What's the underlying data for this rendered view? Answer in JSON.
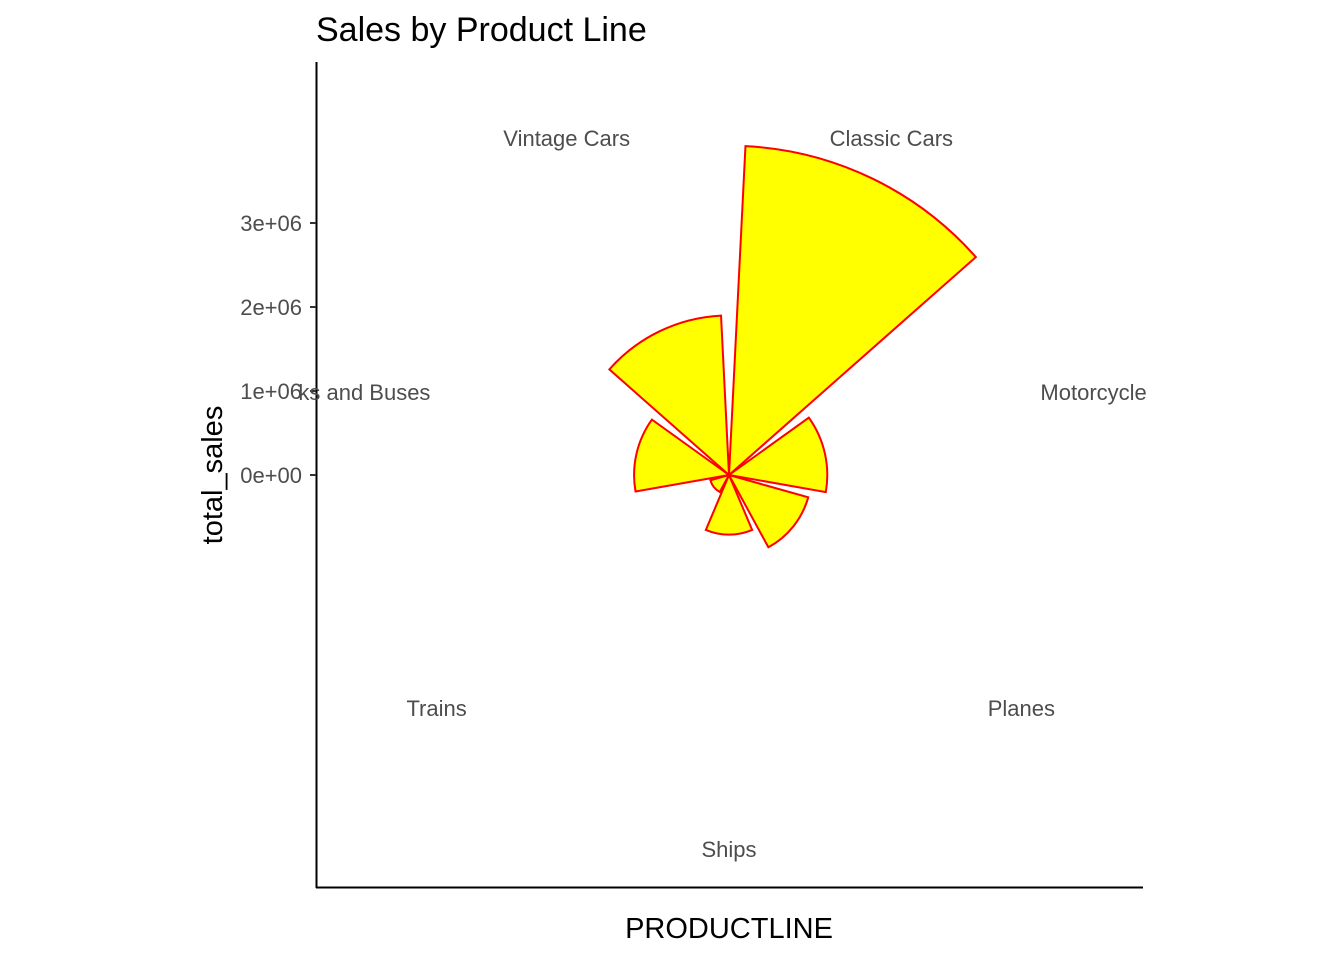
{
  "chart_data": {
    "type": "bar",
    "coord": "polar",
    "title": "Sales by Product Line",
    "xlabel": "PRODUCTLINE",
    "ylabel": "total_sales",
    "categories": [
      "Classic Cars",
      "Motorcycles",
      "Planes",
      "Ships",
      "Trains",
      "Trucks and Buses",
      "Vintage Cars"
    ],
    "category_labels": [
      "Classic Cars",
      "Motorcycle",
      "Planes",
      "Ships",
      "Trains",
      "ks and Buses",
      "Vintage Cars"
    ],
    "values": [
      3920000,
      1170000,
      980000,
      710000,
      230000,
      1130000,
      1900000
    ],
    "yticks": [
      0,
      1000000,
      2000000,
      3000000
    ],
    "ytick_labels": [
      "0e+00",
      "1e+06",
      "2e+06",
      "3e+06"
    ],
    "ylim": [
      0,
      4900000
    ],
    "fill_color": "#ffff00",
    "stroke_color": "#ff0000",
    "grid": false
  }
}
